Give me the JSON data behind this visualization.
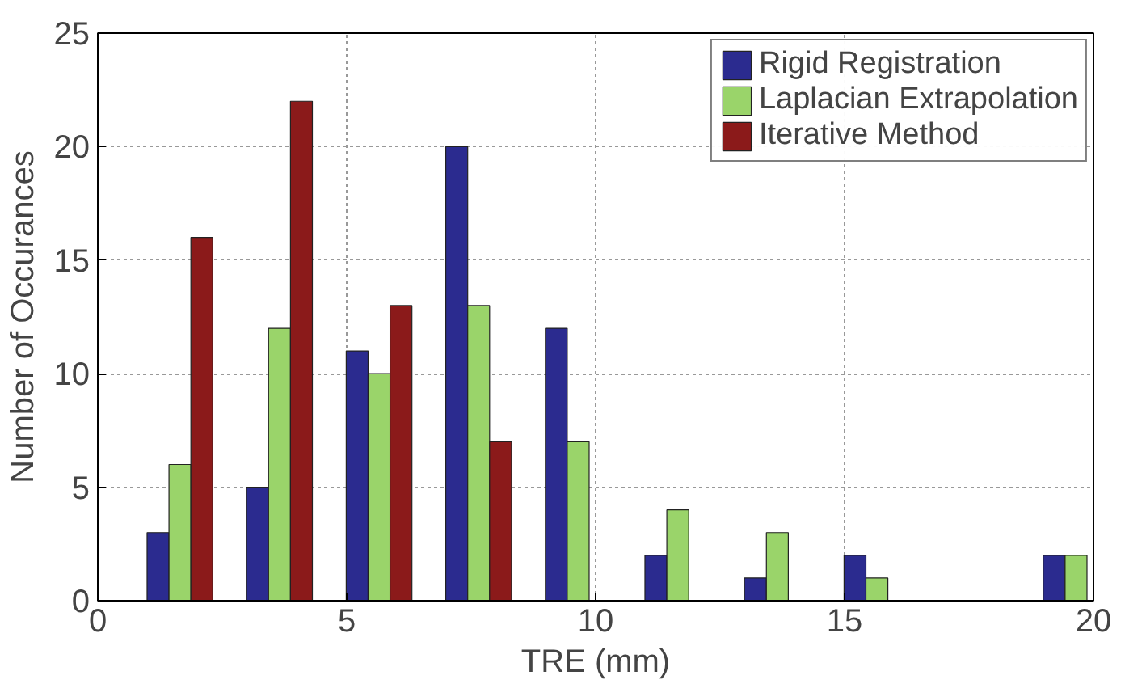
{
  "chart_data": {
    "type": "bar",
    "xlabel": "TRE (mm)",
    "ylabel": "Number of Occurances",
    "x": [
      1.65,
      3.65,
      5.65,
      7.65,
      9.65,
      11.65,
      13.65,
      15.65,
      17.65,
      19.65
    ],
    "series": [
      {
        "name": "Rigid Registration",
        "color": "#2b2b8f",
        "values": [
          3,
          5,
          11,
          20,
          12,
          2,
          1,
          2,
          null,
          2
        ]
      },
      {
        "name": "Laplacian Extrapolation",
        "color": "#9ad46a",
        "values": [
          6,
          12,
          10,
          13,
          7,
          4,
          3,
          1,
          null,
          2
        ]
      },
      {
        "name": "Iterative Method",
        "color": "#8b1a1a",
        "values": [
          16,
          22,
          13,
          7,
          null,
          null,
          null,
          null,
          null,
          null
        ]
      }
    ],
    "xlim": [
      0,
      20
    ],
    "xticks": [
      0,
      5,
      10,
      15,
      20
    ],
    "ylim": [
      0,
      25
    ],
    "yticks": [
      0,
      5,
      10,
      15,
      20,
      25
    ],
    "grid": true,
    "legend": "top right"
  }
}
